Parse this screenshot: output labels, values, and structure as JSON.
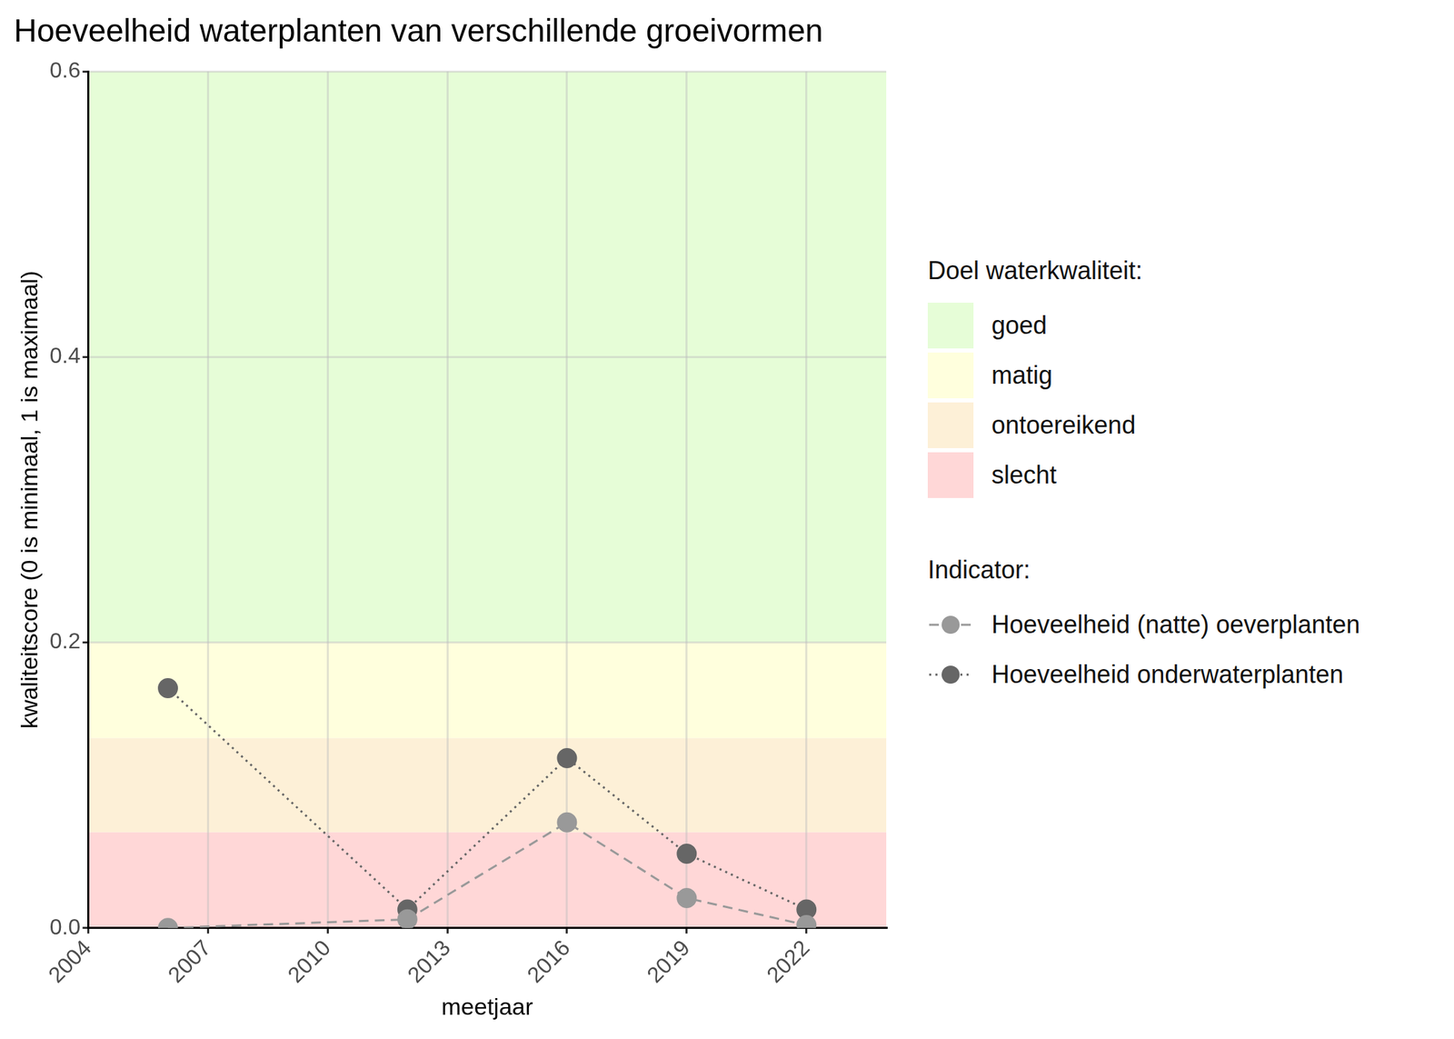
{
  "chart_data": {
    "type": "line",
    "title": "Hoeveelheid waterplanten van verschillende groeivormen",
    "x_label": "meetjaar",
    "y_label": "kwaliteitscore (0 is minimaal, 1 is maximaal)",
    "x": [
      2006,
      2012,
      2016,
      2019,
      2022
    ],
    "series": [
      {
        "name": "Hoeveelheid (natte) oeverplanten",
        "color": "#999999",
        "line_style": "dashed",
        "marker": "circle",
        "values": [
          0.0,
          0.006,
          0.074,
          0.021,
          0.002
        ]
      },
      {
        "name": "Hoeveelheid onderwaterplanten",
        "color": "#666666",
        "line_style": "dotted",
        "marker": "circle",
        "values": [
          0.168,
          0.013,
          0.119,
          0.052,
          0.013
        ]
      }
    ],
    "bands_title": "Doel waterkwaliteit:",
    "series_title": "Indicator:",
    "bands": [
      {
        "name": "goed",
        "from": 0.2,
        "to": 0.6,
        "color": "#e6fdd7"
      },
      {
        "name": "matig",
        "from": 0.133,
        "to": 0.2,
        "color": "#ffffdd"
      },
      {
        "name": "ontoereikend",
        "from": 0.067,
        "to": 0.133,
        "color": "#fdf0d7"
      },
      {
        "name": "slecht",
        "from": 0.0,
        "to": 0.067,
        "color": "#ffd7d7"
      }
    ],
    "xlim": [
      2004,
      2024
    ],
    "xticks": [
      2004,
      2007,
      2010,
      2013,
      2016,
      2019,
      2022
    ],
    "ylim": [
      0,
      0.6
    ],
    "yticks": [
      {
        "value": 0,
        "label": "0.0"
      },
      {
        "value": 0.2,
        "label": "0.2"
      },
      {
        "value": 0.4,
        "label": "0.4"
      },
      {
        "value": 0.6,
        "label": "0.6"
      }
    ],
    "grid": true,
    "legend": "right"
  }
}
